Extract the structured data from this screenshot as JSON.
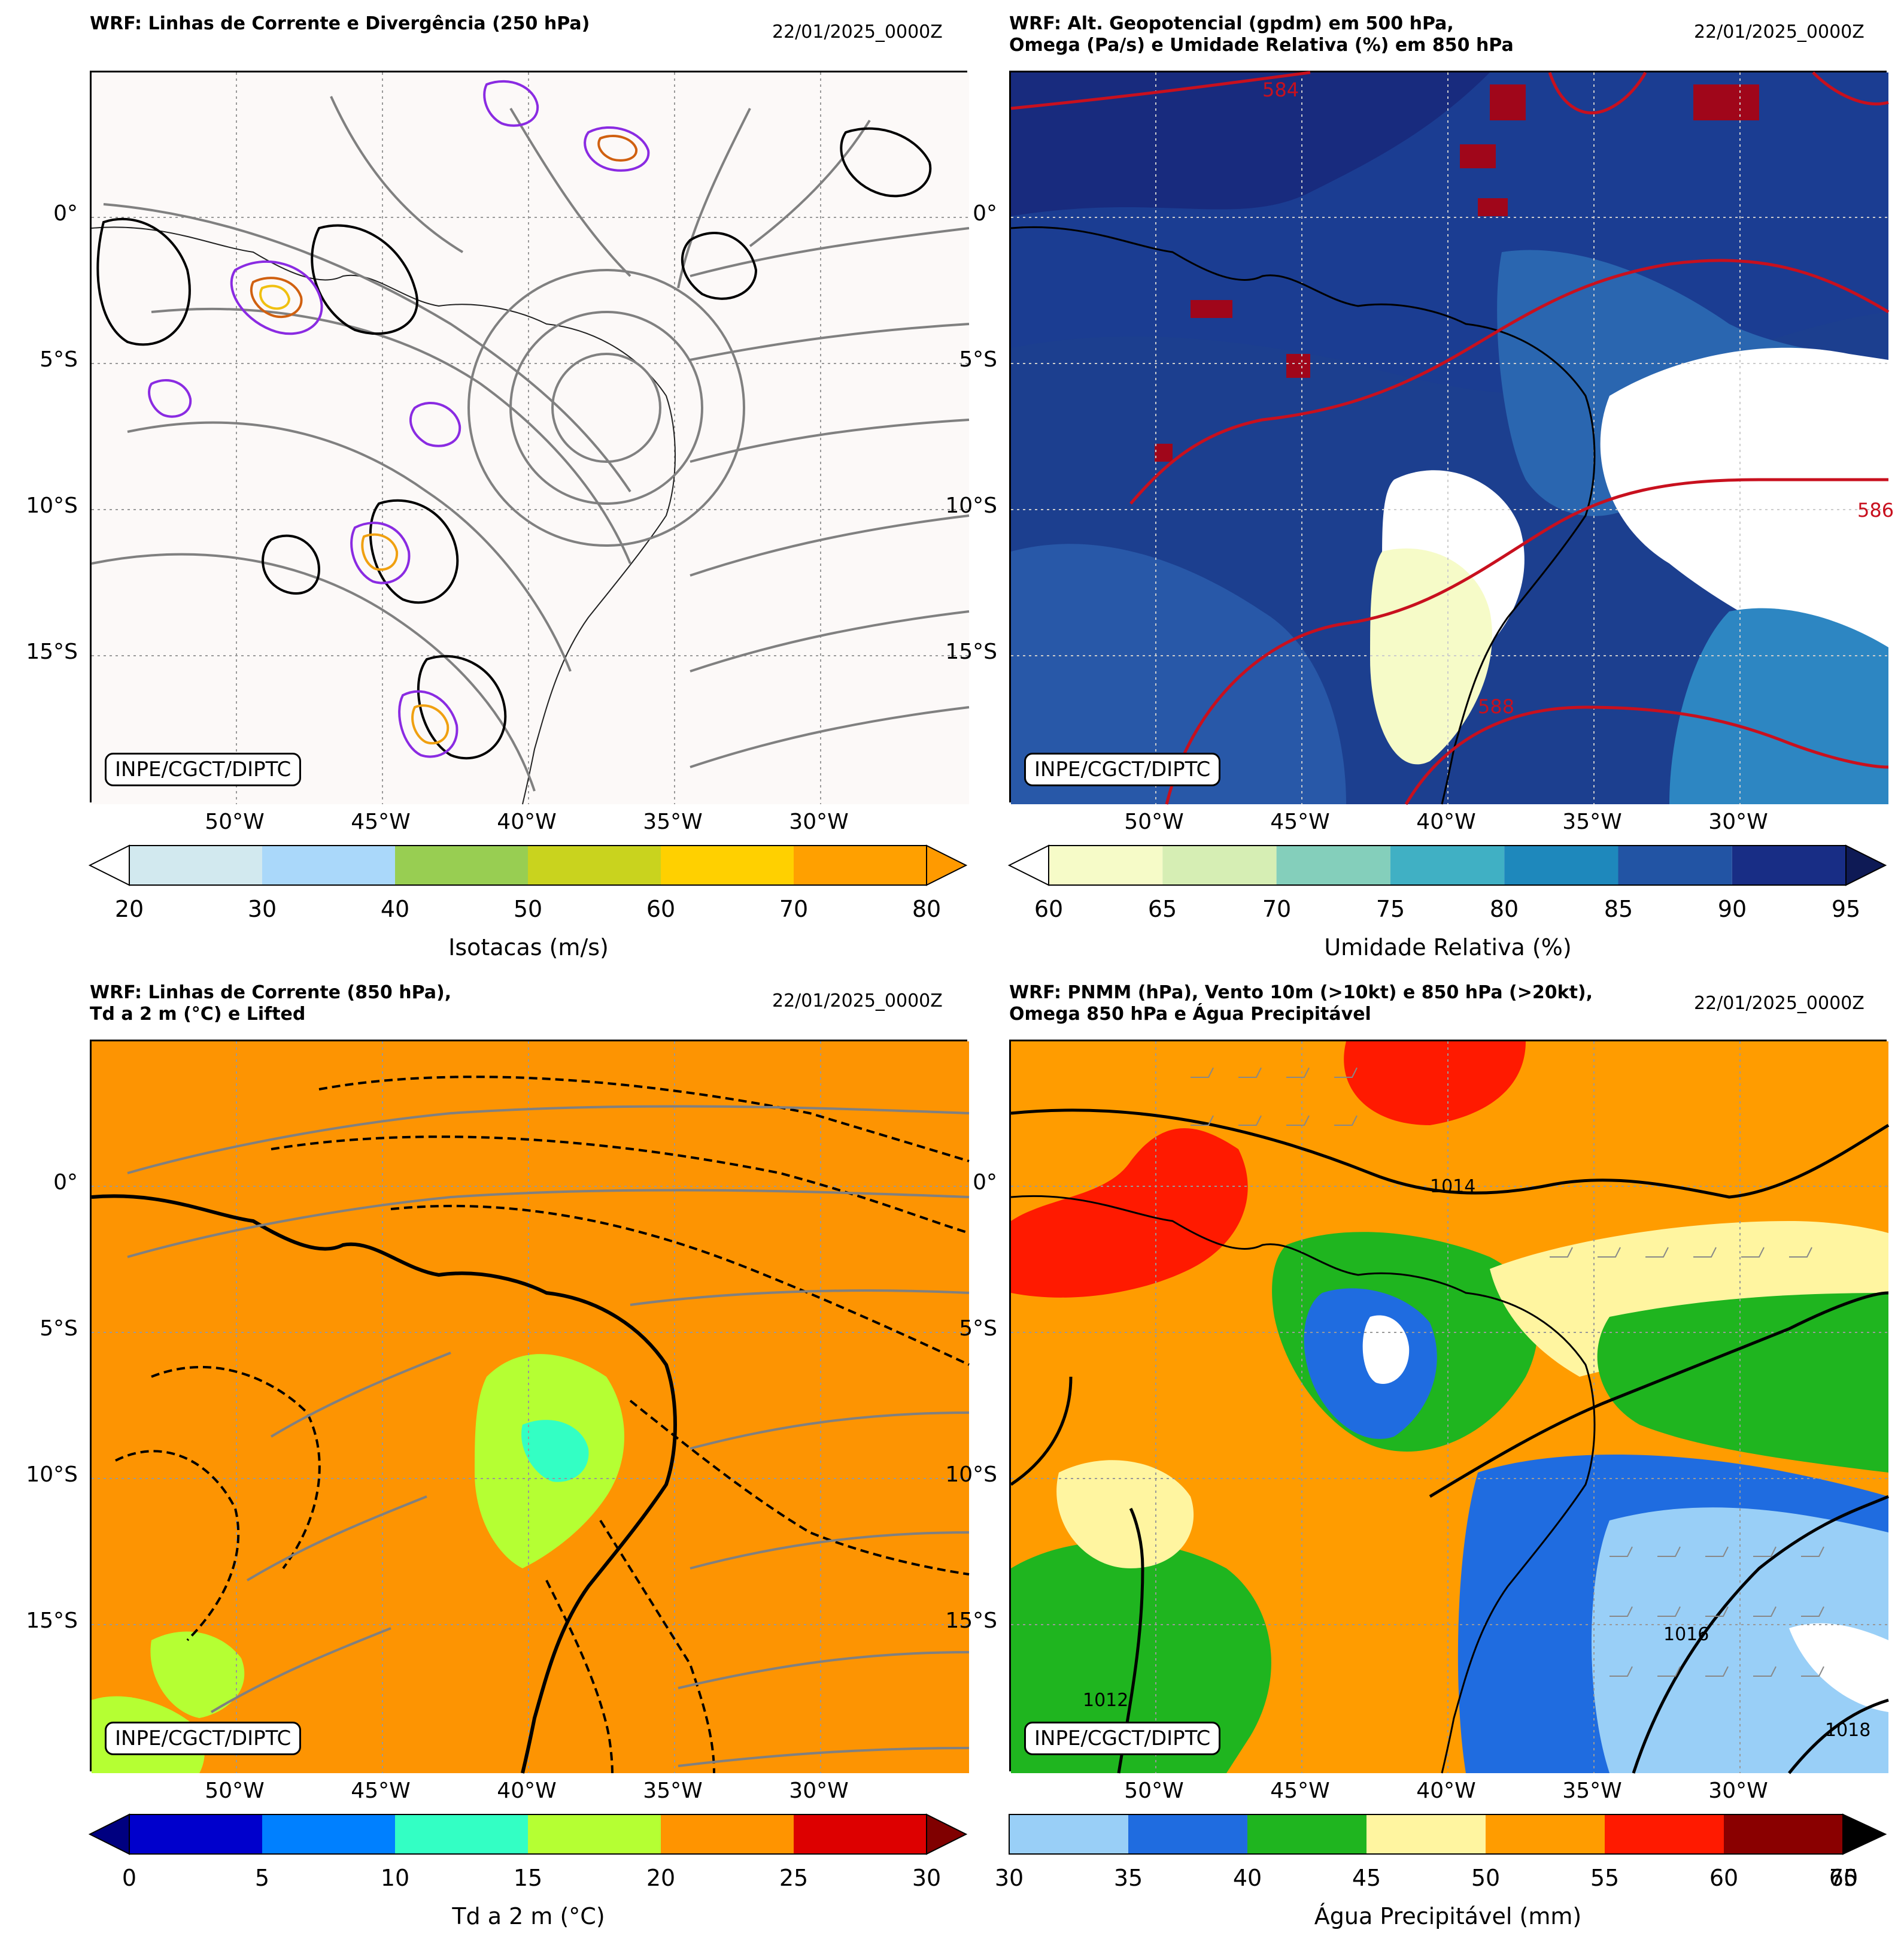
{
  "panels": [
    {
      "id": "p1",
      "title": "WRF: Linhas de Corrente e Divergência (250 hPa)",
      "date": "22/01/2025_0000Z",
      "credit": "INPE/CGCT/DIPTC",
      "background": "#fcf9f8",
      "lat_labels": [
        "0°",
        "5°S",
        "10°S",
        "15°S"
      ],
      "lon_labels": [
        "50°W",
        "45°W",
        "40°W",
        "35°W",
        "30°W"
      ],
      "colorbar": {
        "label": "Isotacas (m/s)",
        "ticks": [
          "20",
          "30",
          "40",
          "50",
          "60",
          "70",
          "80"
        ],
        "colors": [
          "#d2e9ef",
          "#aad8fa",
          "#98ce52",
          "#c9d31e",
          "#ffd000",
          "#ffa000"
        ],
        "under": "#ffffff",
        "over": "#ff9a00"
      }
    },
    {
      "id": "p2",
      "title": "WRF: Alt. Geopotencial (gpdm) em 500 hPa,\nOmega (Pa/s) e Umidade Relativa (%) em 850 hPa",
      "date": "22/01/2025_0000Z",
      "credit": "INPE/CGCT/DIPTC",
      "background": "#1c3f8f",
      "lat_labels": [
        "0°",
        "5°S",
        "10°S",
        "15°S"
      ],
      "lon_labels": [
        "50°W",
        "45°W",
        "40°W",
        "35°W",
        "30°W"
      ],
      "contour_labels": [
        "584",
        "586",
        "588"
      ],
      "colorbar": {
        "label": "Umidade Relativa (%)",
        "ticks": [
          "60",
          "65",
          "70",
          "75",
          "80",
          "85",
          "90",
          "95"
        ],
        "colors": [
          "#f6fbc8",
          "#d6eeb4",
          "#84cfbb",
          "#40b0c4",
          "#1e88bc",
          "#2254a4",
          "#182d85"
        ],
        "under": "#ffffff",
        "over": "#0e1a55"
      }
    },
    {
      "id": "p3",
      "title": "WRF: Linhas de Corrente (850 hPa),\nTd a 2 m (°C) e Lifted",
      "date": "22/01/2025_0000Z",
      "credit": "INPE/CGCT/DIPTC",
      "background": "#fd9402",
      "lat_labels": [
        "0°",
        "5°S",
        "10°S",
        "15°S"
      ],
      "lon_labels": [
        "50°W",
        "45°W",
        "40°W",
        "35°W",
        "30°W"
      ],
      "colorbar": {
        "label": "Td a 2 m (°C)",
        "ticks": [
          "0",
          "5",
          "10",
          "15",
          "20",
          "25",
          "30"
        ],
        "colors": [
          "#0000cc",
          "#0080ff",
          "#33ffc4",
          "#b5ff33",
          "#ff9400",
          "#dd0000"
        ],
        "under": "#000080",
        "over": "#800000"
      }
    },
    {
      "id": "p4",
      "title": "WRF: PNMM (hPa), Vento 10m (>10kt) e 850 hPa (>20kt),\nOmega 850 hPa e Água Precipitável",
      "date": "22/01/2025_0000Z",
      "credit": "INPE/CGCT/DIPTC",
      "background": "#ff9c00",
      "lat_labels": [
        "0°",
        "5°S",
        "10°S",
        "15°S"
      ],
      "lon_labels": [
        "50°W",
        "45°W",
        "40°W",
        "35°W",
        "30°W"
      ],
      "contour_labels": [
        "1012",
        "1014",
        "1016",
        "1018"
      ],
      "colorbar": {
        "label": "Água Precipitável (mm)",
        "ticks": [
          "30",
          "35",
          "40",
          "45",
          "50",
          "55",
          "60",
          "65"
        ],
        "end_tick": "70",
        "colors": [
          "#99cff7",
          "#1f6ce0",
          "#1fb51f",
          "#fff5a0",
          "#ff9c00",
          "#ff1a00",
          "#8a0000",
          "#6a0000"
        ],
        "under": "#99cff7",
        "over": "#000000"
      }
    }
  ]
}
